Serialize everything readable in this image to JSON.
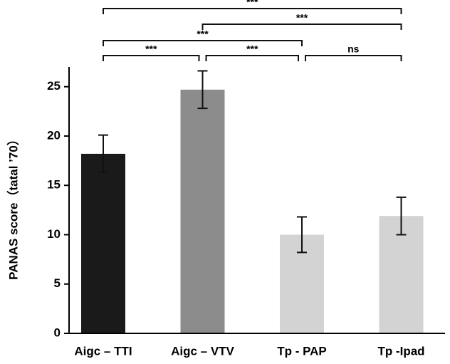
{
  "chart_data": {
    "type": "bar",
    "y_label": "PANAS score（tatal ’70）",
    "categories": [
      "Aigc – TTI",
      "Aigc – VTV",
      "Tp - PAP",
      "Tp -Ipad"
    ],
    "values": [
      18.2,
      24.7,
      10.0,
      11.9
    ],
    "errors": [
      1.9,
      1.9,
      1.8,
      1.9
    ],
    "colors": [
      "#1a1a1a",
      "#8c8c8c",
      "#d3d3d3",
      "#d3d3d3"
    ],
    "ylim": [
      0,
      27
    ],
    "yticks": [
      0,
      5,
      10,
      15,
      20,
      25
    ],
    "annotations": [
      {
        "from": 0,
        "to": 1,
        "label": "***"
      },
      {
        "from": 1,
        "to": 2,
        "label": "***"
      },
      {
        "from": 2,
        "to": 3,
        "label": "ns"
      },
      {
        "from": 0,
        "to": 2,
        "label": "***"
      },
      {
        "from": 1,
        "to": 3,
        "label": "***"
      },
      {
        "from": 0,
        "to": 3,
        "label": "***"
      }
    ]
  }
}
